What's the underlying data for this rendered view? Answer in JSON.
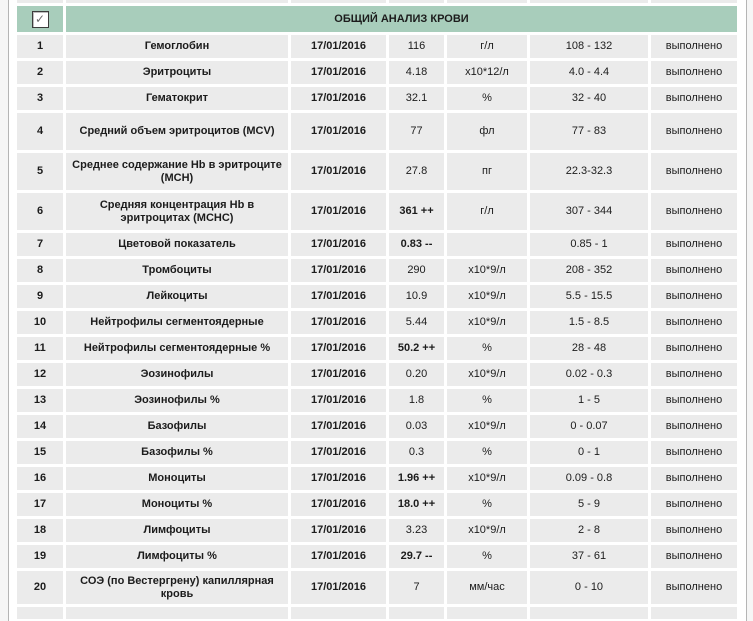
{
  "panel": {
    "title": "ОБЩИЙ АНАЛИЗ КРОВИ",
    "checkbox_checked": true,
    "checkbox_glyph": "✓",
    "header_bg": "#a8cdbb",
    "row_bg": "#ebebeb"
  },
  "rows": [
    {
      "num": "1",
      "name": "Гемоглобин",
      "date": "17/01/2016",
      "value": "116",
      "flagged": false,
      "unit": "г/л",
      "range": "108 - 132",
      "status": "выполнено"
    },
    {
      "num": "2",
      "name": "Эритроциты",
      "date": "17/01/2016",
      "value": "4.18",
      "flagged": false,
      "unit": "х10*12/л",
      "range": "4.0 - 4.4",
      "status": "выполнено"
    },
    {
      "num": "3",
      "name": "Гематокрит",
      "date": "17/01/2016",
      "value": "32.1",
      "flagged": false,
      "unit": "%",
      "range": "32 - 40",
      "status": "выполнено"
    },
    {
      "num": "4",
      "name": "Средний объем эритроцитов (MCV)",
      "date": "17/01/2016",
      "value": "77",
      "flagged": false,
      "unit": "фл",
      "range": "77 - 83",
      "status": "выполнено"
    },
    {
      "num": "5",
      "name": "Среднее содержание Hb в эритроците (MCH)",
      "date": "17/01/2016",
      "value": "27.8",
      "flagged": false,
      "unit": "пг",
      "range": "22.3-32.3",
      "status": "выполнено"
    },
    {
      "num": "6",
      "name": "Средняя концентрация Hb в эритроцитах (MCHC)",
      "date": "17/01/2016",
      "value": "361 ++",
      "flagged": true,
      "unit": "г/л",
      "range": "307 - 344",
      "status": "выполнено"
    },
    {
      "num": "7",
      "name": "Цветовой показатель",
      "date": "17/01/2016",
      "value": "0.83 --",
      "flagged": true,
      "unit": "",
      "range": "0.85 - 1",
      "status": "выполнено"
    },
    {
      "num": "8",
      "name": "Тромбоциты",
      "date": "17/01/2016",
      "value": "290",
      "flagged": false,
      "unit": "х10*9/л",
      "range": "208 - 352",
      "status": "выполнено"
    },
    {
      "num": "9",
      "name": "Лейкоциты",
      "date": "17/01/2016",
      "value": "10.9",
      "flagged": false,
      "unit": "х10*9/л",
      "range": "5.5 - 15.5",
      "status": "выполнено"
    },
    {
      "num": "10",
      "name": "Нейтрофилы сегментоядерные",
      "date": "17/01/2016",
      "value": "5.44",
      "flagged": false,
      "unit": "х10*9/л",
      "range": "1.5 - 8.5",
      "status": "выполнено"
    },
    {
      "num": "11",
      "name": "Нейтрофилы сегментоядерные %",
      "date": "17/01/2016",
      "value": "50.2 ++",
      "flagged": true,
      "unit": "%",
      "range": "28 - 48",
      "status": "выполнено"
    },
    {
      "num": "12",
      "name": "Эозинофилы",
      "date": "17/01/2016",
      "value": "0.20",
      "flagged": false,
      "unit": "х10*9/л",
      "range": "0.02 - 0.3",
      "status": "выполнено"
    },
    {
      "num": "13",
      "name": "Эозинофилы %",
      "date": "17/01/2016",
      "value": "1.8",
      "flagged": false,
      "unit": "%",
      "range": "1 - 5",
      "status": "выполнено"
    },
    {
      "num": "14",
      "name": "Базофилы",
      "date": "17/01/2016",
      "value": "0.03",
      "flagged": false,
      "unit": "х10*9/л",
      "range": "0 - 0.07",
      "status": "выполнено"
    },
    {
      "num": "15",
      "name": "Базофилы %",
      "date": "17/01/2016",
      "value": "0.3",
      "flagged": false,
      "unit": "%",
      "range": "0 - 1",
      "status": "выполнено"
    },
    {
      "num": "16",
      "name": "Моноциты",
      "date": "17/01/2016",
      "value": "1.96 ++",
      "flagged": true,
      "unit": "х10*9/л",
      "range": "0.09 - 0.8",
      "status": "выполнено"
    },
    {
      "num": "17",
      "name": "Моноциты %",
      "date": "17/01/2016",
      "value": "18.0 ++",
      "flagged": true,
      "unit": "%",
      "range": "5 - 9",
      "status": "выполнено"
    },
    {
      "num": "18",
      "name": "Лимфоциты",
      "date": "17/01/2016",
      "value": "3.23",
      "flagged": false,
      "unit": "х10*9/л",
      "range": "2 - 8",
      "status": "выполнено"
    },
    {
      "num": "19",
      "name": "Лимфоциты %",
      "date": "17/01/2016",
      "value": "29.7 --",
      "flagged": true,
      "unit": "%",
      "range": "37 - 61",
      "status": "выполнено"
    },
    {
      "num": "20",
      "name": "СОЭ (по Вестергрену) капиллярная кровь",
      "date": "17/01/2016",
      "value": "7",
      "flagged": false,
      "unit": "мм/час",
      "range": "0 - 10",
      "status": "выполнено"
    }
  ]
}
